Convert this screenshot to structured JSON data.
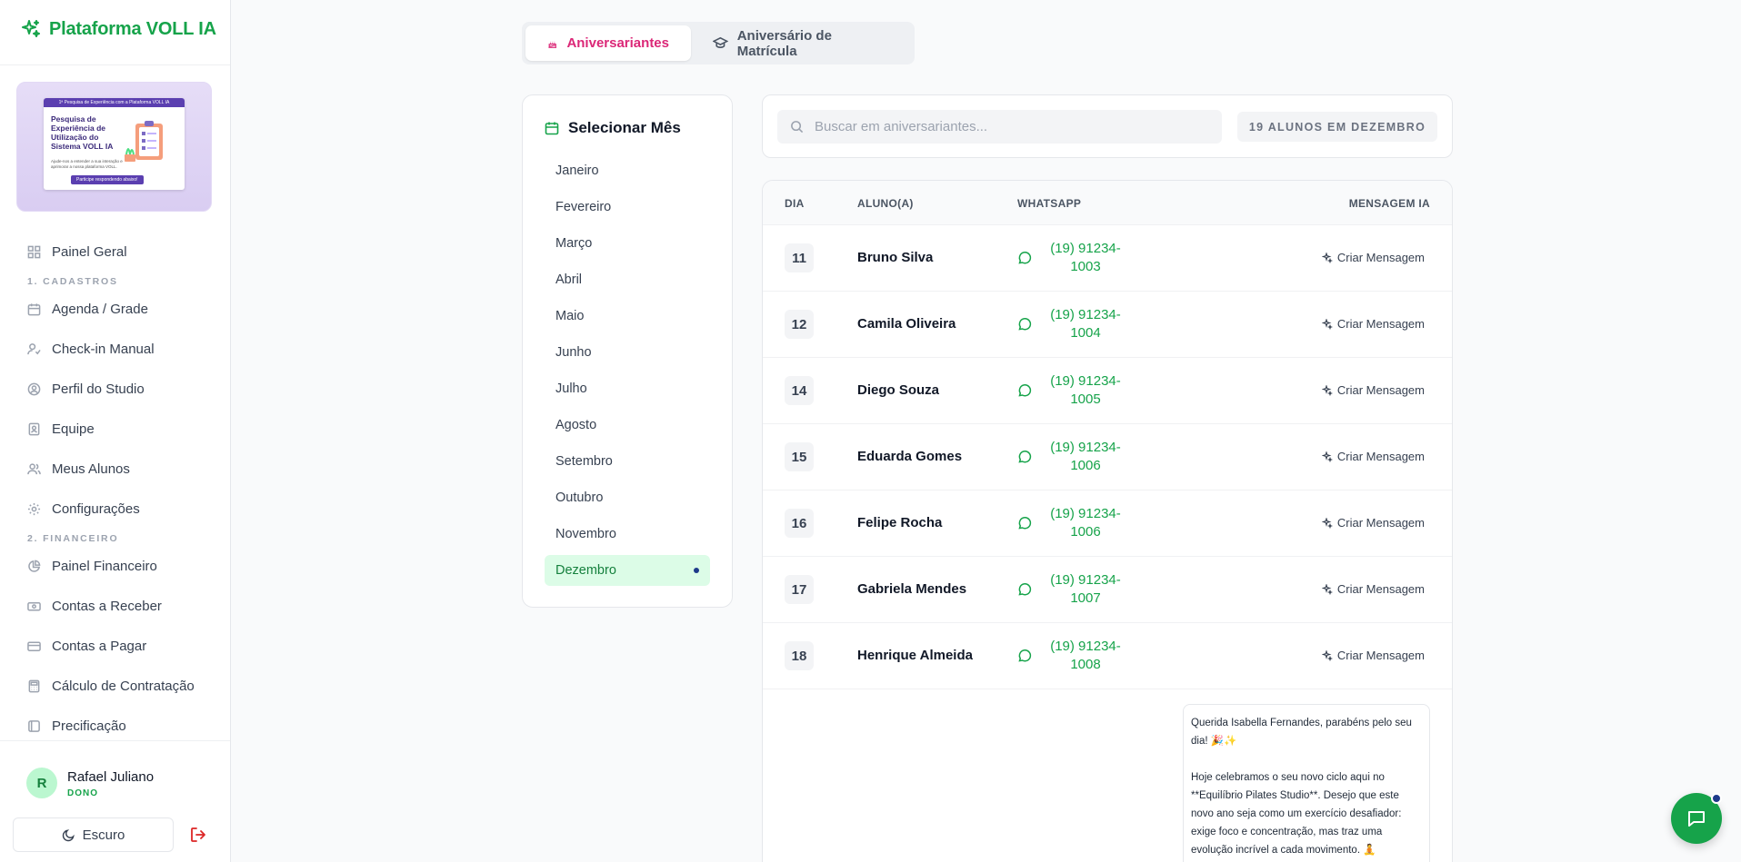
{
  "brand": {
    "name": "Plataforma VOLL IA"
  },
  "banner": {
    "top": "1ª Pesquisa de Experiência com a Plataforma VOLL IA",
    "title": "Pesquisa de Experiência de Utilização do Sistema VOLL IA",
    "subtitle": "Ajude-nos a entender a sua interação e aprimorar a nossa plataforma VOLL.",
    "cta": "Participe respondendo abaixo!"
  },
  "nav": {
    "painel_geral": "Painel Geral",
    "section_cadastros": "1. CADASTROS",
    "agenda": "Agenda / Grade",
    "checkin": "Check-in Manual",
    "perfil": "Perfil do Studio",
    "equipe": "Equipe",
    "alunos": "Meus Alunos",
    "config": "Configurações",
    "section_financeiro": "2. FINANCEIRO",
    "painel_fin": "Painel Financeiro",
    "receber": "Contas a Receber",
    "pagar": "Contas a Pagar",
    "calculo": "Cálculo de Contratação",
    "precificacao": "Precificação"
  },
  "user": {
    "initial": "R",
    "name": "Rafael Juliano",
    "role": "DONO",
    "theme_label": "Escuro"
  },
  "tabs": {
    "birthdays": "Aniversariantes",
    "enrollment": "Aniversário de Matrícula"
  },
  "months": {
    "title": "Selecionar Mês",
    "items": [
      "Janeiro",
      "Fevereiro",
      "Março",
      "Abril",
      "Maio",
      "Junho",
      "Julho",
      "Agosto",
      "Setembro",
      "Outubro",
      "Novembro",
      "Dezembro"
    ],
    "selected": "Dezembro"
  },
  "search": {
    "placeholder": "Buscar em aniversariantes...",
    "count": "19 ALUNOS EM DEZEMBRO"
  },
  "table": {
    "headers": {
      "day": "DIA",
      "student": "ALUNO(A)",
      "whatsapp": "WHATSAPP",
      "message": "MENSAGEM IA"
    },
    "action_label": "Criar Mensagem",
    "rows": [
      {
        "day": "11",
        "name": "Bruno Silva",
        "phone1": "(19) 91234-",
        "phone2": "1003"
      },
      {
        "day": "12",
        "name": "Camila Oliveira",
        "phone1": "(19) 91234-",
        "phone2": "1004"
      },
      {
        "day": "14",
        "name": "Diego Souza",
        "phone1": "(19) 91234-",
        "phone2": "1005"
      },
      {
        "day": "15",
        "name": "Eduarda Gomes",
        "phone1": "(19) 91234-",
        "phone2": "1006"
      },
      {
        "day": "16",
        "name": "Felipe Rocha",
        "phone1": "(19) 91234-",
        "phone2": "1006"
      },
      {
        "day": "17",
        "name": "Gabriela Mendes",
        "phone1": "(19) 91234-",
        "phone2": "1007"
      },
      {
        "day": "18",
        "name": "Henrique Almeida",
        "phone1": "(19) 91234-",
        "phone2": "1008"
      }
    ],
    "generated_message": {
      "p1": "Querida Isabella Fernandes, parabéns pelo seu dia! 🎉✨",
      "p2": "Hoje celebramos o seu novo ciclo aqui no **Equilíbrio Pilates Studio**. Desejo que este novo ano seja como um exercício desafiador: exige foco e concentração, mas traz uma evolução incrível a cada movimento. 🧘"
    }
  },
  "colors": {
    "brand": "#16a34a",
    "active_tab": "#db2777",
    "selected_month_bg": "#dcfce7",
    "accent_dot": "#1e3a8a"
  }
}
